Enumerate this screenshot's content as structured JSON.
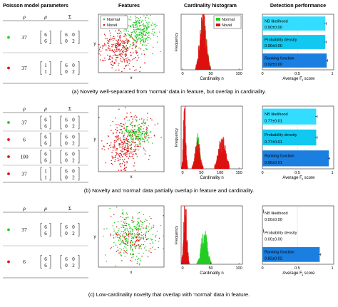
{
  "headers": {
    "params": "Poisson model parameters",
    "features": "Features",
    "histogram": "Cardinality histogram",
    "detection": "Detection performance"
  },
  "table_headers": {
    "rho": "ρ",
    "mu": "μ",
    "sigma": "Σ"
  },
  "colors": {
    "normal": "#22cc22",
    "novel": "#dd1111",
    "bar_light": "#33ddff",
    "bar_mid": "#11c8f0",
    "bar_dark": "#1a7fe0",
    "grid": "#cccccc"
  },
  "axis_labels": {
    "feat_x": "x",
    "feat_y": "y",
    "hist_x": "Cardinality n",
    "hist_y": "Frequency",
    "perf_x": "Average F",
    "perf_x_sub": "1",
    "perf_x_tail": " score"
  },
  "legend": {
    "normal": "Normal",
    "novel": "Novel"
  },
  "rows": [
    {
      "params": [
        {
          "dot": "normal",
          "rho": "37",
          "mu": [
            "6",
            "6"
          ],
          "sigma": [
            [
              "6",
              "0"
            ],
            [
              "0",
              "2"
            ]
          ]
        },
        {
          "dot": "novel",
          "rho": "37",
          "mu": [
            "1",
            "1"
          ],
          "sigma": [
            [
              "6",
              "0"
            ],
            [
              "0",
              "2"
            ]
          ]
        }
      ],
      "hist_ticks": [
        "0",
        "50",
        "100"
      ],
      "perf_ticks": [
        "0",
        "0.5",
        "1"
      ],
      "perf": [
        {
          "label": "NB likelihood",
          "score": "0.90±0.00",
          "value": 0.9,
          "color": "bar_light"
        },
        {
          "label": "Probability density",
          "score": "0.90±0.00",
          "value": 0.9,
          "color": "bar_mid"
        },
        {
          "label": "Ranking function",
          "score": "0.92±0.00",
          "value": 0.92,
          "color": "bar_dark"
        }
      ],
      "caption": "(a) Novelty well-separated from ‘normal’ data in feature, but overlap in cardinality."
    },
    {
      "params": [
        {
          "dot": "normal",
          "rho": "37",
          "mu": [
            "6",
            "6"
          ],
          "sigma": [
            [
              "6",
              "0"
            ],
            [
              "0",
              "2"
            ]
          ]
        },
        {
          "dot": "novel",
          "rho": "6",
          "mu": [
            "6",
            "6"
          ],
          "sigma": [
            [
              "6",
              "0"
            ],
            [
              "0",
              "2"
            ]
          ]
        },
        {
          "dot": "novel",
          "rho": "100",
          "mu": [
            "6",
            "6"
          ],
          "sigma": [
            [
              "6",
              "0"
            ],
            [
              "0",
              "2"
            ]
          ]
        },
        {
          "dot": "novel",
          "rho": "37",
          "mu": [
            "1",
            "1"
          ],
          "sigma": [
            [
              "6",
              "0"
            ],
            [
              "0",
              "2"
            ]
          ]
        }
      ],
      "hist_ticks": [
        "0",
        "50",
        "100",
        "150"
      ],
      "perf_ticks": [
        "0",
        "0.5",
        "1"
      ],
      "perf": [
        {
          "label": "NB likelihood",
          "score": "0.77±0.01",
          "value": 0.77,
          "color": "bar_light"
        },
        {
          "label": "Probability density",
          "score": "0.77±0.01",
          "value": 0.77,
          "color": "bar_mid"
        },
        {
          "label": "Ranking function",
          "score": "0.95±0.01",
          "value": 0.95,
          "color": "bar_dark"
        }
      ],
      "caption": "(b) Novelty and ‘normal’ data partially overlap in feature and cardinality."
    },
    {
      "params": [
        {
          "dot": "normal",
          "rho": "37",
          "mu": [
            "6",
            "6"
          ],
          "sigma": [
            [
              "6",
              "0"
            ],
            [
              "0",
              "2"
            ]
          ]
        },
        {
          "dot": "novel",
          "rho": "6",
          "mu": [
            "6",
            "6"
          ],
          "sigma": [
            [
              "6",
              "0"
            ],
            [
              "0",
              "2"
            ]
          ]
        }
      ],
      "hist_ticks": [
        "0",
        "50",
        "100"
      ],
      "perf_ticks": [
        "0",
        "0.5",
        "1"
      ],
      "perf": [
        {
          "label": "NB likelihood",
          "score": "0.00±0.00",
          "value": 0.0,
          "color": "bar_light"
        },
        {
          "label": "Probability density",
          "score": "0.00±0.00",
          "value": 0.0,
          "color": "bar_mid"
        },
        {
          "label": "Ranking function",
          "score": "0.82±0.02",
          "value": 0.82,
          "color": "bar_dark"
        }
      ],
      "caption": "(c) Low-cardinality novelty that overlap with ‘normal’ data in feature."
    }
  ]
}
